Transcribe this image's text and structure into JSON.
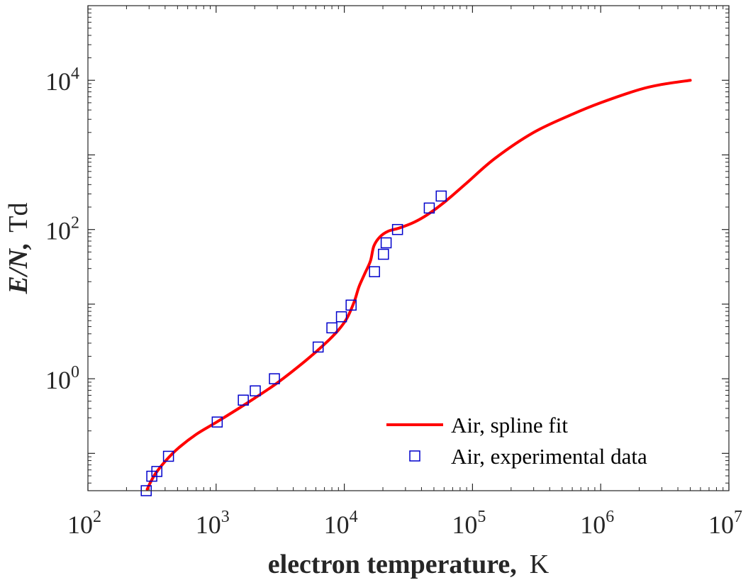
{
  "chart_data": {
    "type": "scatter",
    "xlabel": {
      "bold": "electron temperature,",
      "unit": "K"
    },
    "ylabel": {
      "bold": "E/N,",
      "unit": "Td"
    },
    "xscale": "log",
    "yscale": "log",
    "xlim": [
      100,
      10000000
    ],
    "ylim": [
      0.0316,
      100000
    ],
    "grid": false,
    "legend_position": "bottom-right",
    "x_ticks": [
      {
        "base": "10",
        "exp": "2"
      },
      {
        "base": "10",
        "exp": "3"
      },
      {
        "base": "10",
        "exp": "4"
      },
      {
        "base": "10",
        "exp": "5"
      },
      {
        "base": "10",
        "exp": "6"
      },
      {
        "base": "10",
        "exp": "7"
      }
    ],
    "y_ticks": [
      {
        "base": "10",
        "exp": "0"
      },
      {
        "base": "10",
        "exp": "2"
      },
      {
        "base": "10",
        "exp": "4"
      }
    ],
    "series": [
      {
        "name": "Air, spline fit",
        "kind": "line",
        "color": "#ff0000",
        "x": [
          290,
          310,
          340,
          400,
          500,
          700,
          1000,
          1500,
          2000,
          3000,
          5000,
          7000,
          9000,
          10500,
          12000,
          13000,
          14500,
          16000,
          17000,
          19000,
          22000,
          27000,
          35000,
          45000,
          60000,
          90000,
          150000,
          300000,
          600000,
          1000000,
          2000000,
          3000000,
          5000000
        ],
        "y": [
          0.033,
          0.042,
          0.055,
          0.078,
          0.115,
          0.18,
          0.26,
          0.4,
          0.55,
          0.88,
          1.75,
          2.9,
          4.5,
          6.5,
          11,
          17,
          26,
          38,
          60,
          80,
          95,
          105,
          125,
          160,
          230,
          420,
          900,
          2000,
          3500,
          5000,
          7500,
          8800,
          10000
        ]
      },
      {
        "name": "Air, experimental data",
        "kind": "marker",
        "marker": "square",
        "color": "#0000cc",
        "x": [
          285,
          315,
          345,
          425,
          1020,
          1630,
          2020,
          2850,
          6250,
          8000,
          9500,
          11300,
          17200,
          20200,
          21200,
          26000,
          46000,
          57000
        ],
        "y": [
          0.0316,
          0.0494,
          0.0572,
          0.0914,
          0.263,
          0.517,
          0.688,
          1.0,
          2.66,
          4.81,
          6.77,
          9.7,
          27.2,
          46.6,
          66.3,
          100,
          194,
          281
        ]
      }
    ]
  }
}
